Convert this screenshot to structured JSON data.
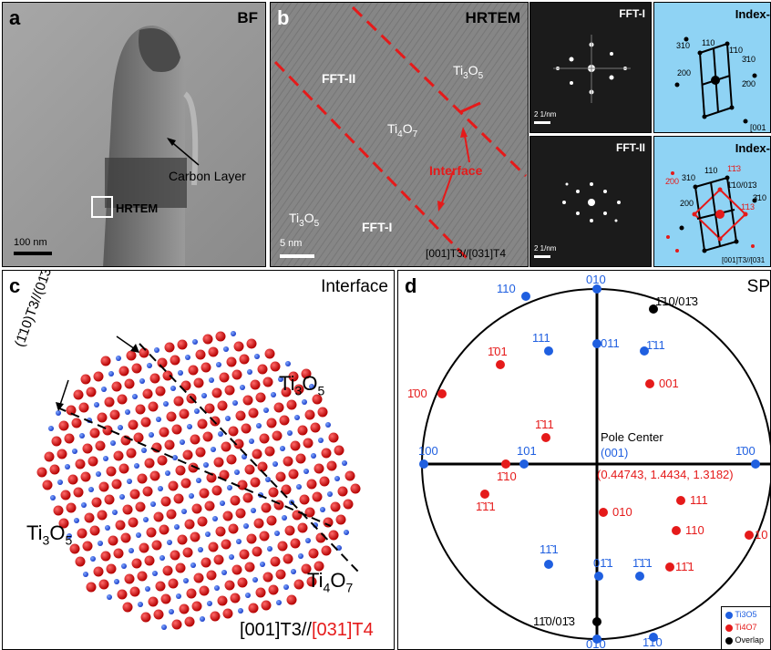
{
  "panel_a": {
    "label": "a",
    "title": "BF",
    "carbon": "Carbon Layer",
    "hrtem": "HRTEM",
    "scale": "100 nm"
  },
  "panel_b": {
    "label": "b",
    "title": "HRTEM",
    "fft2": "FFT-II",
    "fft1": "FFT-I",
    "ti3o5_top": "Ti",
    "ti4o7": "Ti",
    "ti3o5_bottom": "Ti",
    "interface": "Interface",
    "zone": "[001]T3//[031]T4",
    "scale": "5 nm"
  },
  "panel_fft": {
    "fft1_title": "FFT-I",
    "fft2_title": "FFT-II",
    "scale": "2 1/nm"
  },
  "panel_index": {
    "title1": "Index-",
    "title2": "Index-",
    "labels1": [
      "310",
      "110",
      "1̄10",
      "3̄10",
      "200",
      "2̄00",
      "[001"
    ],
    "labels2": [
      "310",
      "110",
      "1̄1̄3",
      "1̄10/01̄3",
      "2̄00",
      "200",
      "1̄13",
      "3̄10",
      "[001]T3//[031"
    ]
  },
  "panel_c": {
    "label": "c",
    "title": "Interface",
    "plane": "(1̄10)T3//(01̄3)T4",
    "left": "Ti3O5",
    "right_top": "Ti3O5",
    "right_bottom": "Ti4O7",
    "zone_black": "[001]T3//",
    "zone_red": "[031]T4"
  },
  "panel_d": {
    "label": "d",
    "title": "SP",
    "pole_center": "Pole Center",
    "pole_center_idx": "(001)",
    "coord": "(0.44743, 1.4434, 1.3182)",
    "blue_labels": [
      "010",
      "110",
      "1̄10",
      "111",
      "011",
      "1̄11",
      "100",
      "101",
      "1̄00",
      "11̄1",
      "01̄1",
      "1̄1̄1",
      "1̄1̄0",
      "01̄0"
    ],
    "red_labels": [
      "1̄01",
      "001",
      "1̄00",
      "1̄11",
      "1̄10",
      "1̄1̄1",
      "010",
      "111",
      "110",
      "11̄1",
      "10"
    ],
    "black_labels": [
      "1̄10/01̄3",
      "11̄0/01̄3"
    ],
    "legend": [
      "Ti3O5",
      "Ti4O7",
      "Overlap"
    ],
    "colors": {
      "blue": "#1f5fe0",
      "red": "#e51a1a",
      "black": "#000000"
    }
  }
}
